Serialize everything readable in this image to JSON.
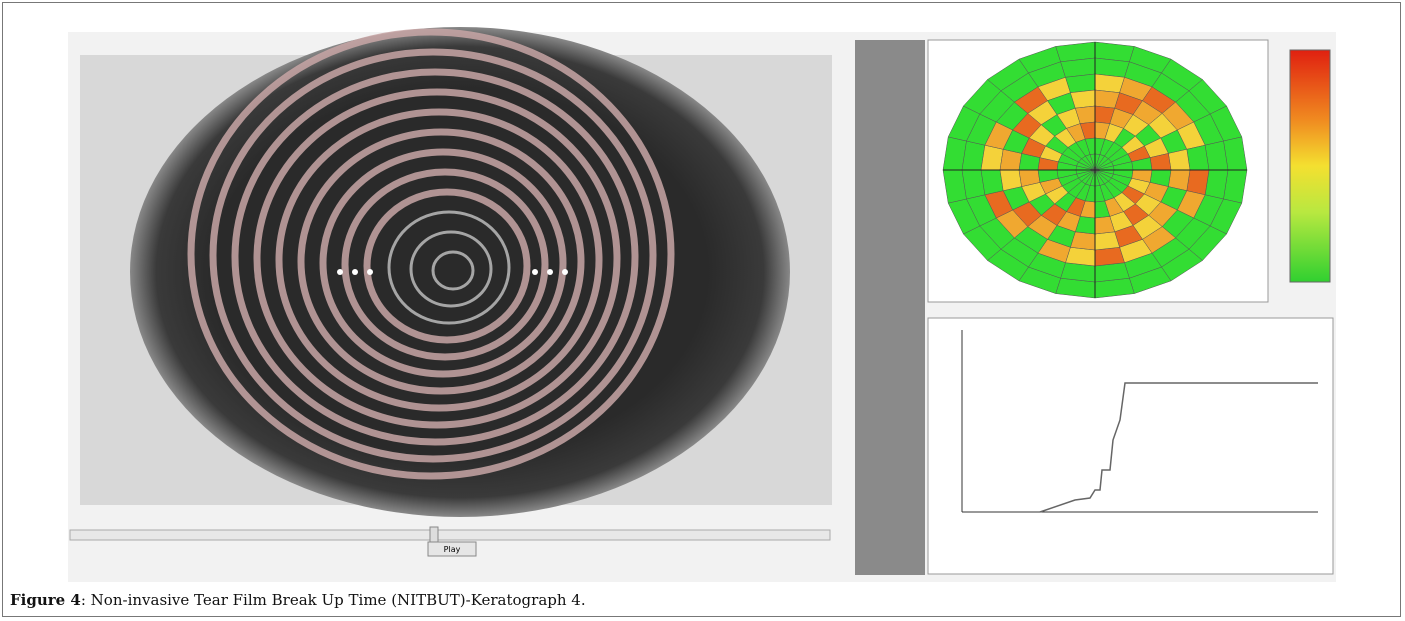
{
  "figure": {
    "label": "Figure 4",
    "caption": ": Non-invasive Tear Film Break Up Time (NITBUT)-Keratograph 4."
  },
  "controls": {
    "play": "Play"
  }
}
